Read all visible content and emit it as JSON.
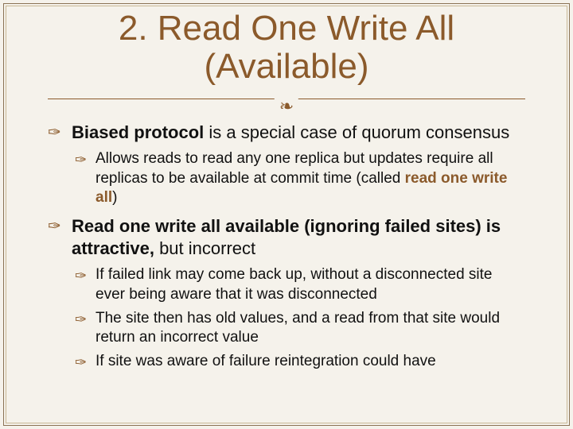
{
  "colors": {
    "background": "#f5f2eb",
    "accent": "#8b5a2b",
    "text": "#111111",
    "border_outer": "#8b7355",
    "border_inner": "#c9b896"
  },
  "typography": {
    "title_fontsize": 44,
    "lvl1_fontsize": 22,
    "lvl2_fontsize": 19,
    "font_family": "Arial"
  },
  "title_line1": "2. Read One Write All",
  "title_line2": "(Available)",
  "flourish_glyph": "❧",
  "b1_bold": "Biased protocol",
  "b1_rest": " is a special case of quorum consensus",
  "b1s1_a": "Allows reads to read any one replica but updates require all replicas to be available at commit time (called ",
  "b1s1_b": "read one write all",
  "b1s1_c": ")",
  "b2_bold": "Read one write all available (ignoring failed sites) is attractive,",
  "b2_rest": " but incorrect",
  "b2s1": "If failed link may come back up, without a disconnected site ever being aware that it was disconnected",
  "b2s2": "The site then has old values, and a read from that site would return an incorrect value",
  "b2s3": "If site was aware of failure reintegration could have"
}
